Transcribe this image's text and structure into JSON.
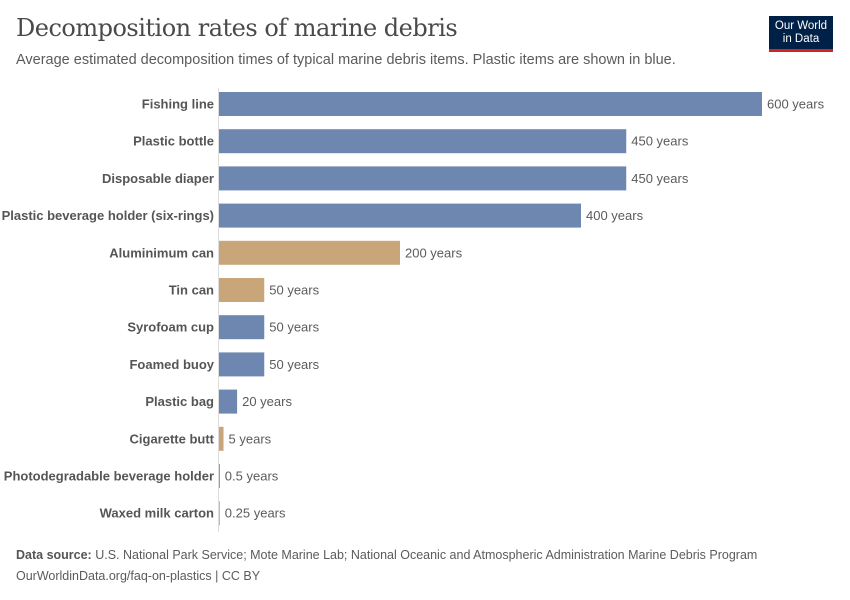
{
  "header": {
    "title": "Decomposition rates of marine debris",
    "subtitle": "Average estimated decomposition times of typical marine debris items. Plastic items are shown in blue.",
    "logo_text": "Our World in Data"
  },
  "colors": {
    "plastic": "#6d87b1",
    "other": "#c9a67a"
  },
  "chart_data": {
    "type": "bar",
    "orientation": "horizontal",
    "categories": [
      "Fishing line",
      "Plastic bottle",
      "Disposable diaper",
      "Plastic beverage holder (six-rings)",
      "Aluminimum can",
      "Tin can",
      "Syrofoam cup",
      "Foamed buoy",
      "Plastic bag",
      "Cigarette butt",
      "Photodegradable beverage holder",
      "Waxed milk carton"
    ],
    "values": [
      600,
      450,
      450,
      400,
      200,
      50,
      50,
      50,
      20,
      5,
      0.5,
      0.25
    ],
    "data_labels": [
      "600 years",
      "450 years",
      "450 years",
      "400 years",
      "200 years",
      "50 years",
      "50 years",
      "50 years",
      "20 years",
      "5 years",
      "0.5 years",
      "0.25 years"
    ],
    "group": [
      "plastic",
      "plastic",
      "plastic",
      "plastic",
      "other",
      "other",
      "plastic",
      "plastic",
      "plastic",
      "other",
      "plastic",
      "other"
    ],
    "unit": "years",
    "xlim": [
      0,
      600
    ],
    "grid": false,
    "legend": "none"
  },
  "footer": {
    "source_label": "Data source:",
    "source_text": "U.S. National Park Service; Mote Marine Lab; National Oceanic and Atmospheric Administration Marine Debris Program",
    "url_text": "OurWorldinData.org/faq-on-plastics | CC BY"
  }
}
